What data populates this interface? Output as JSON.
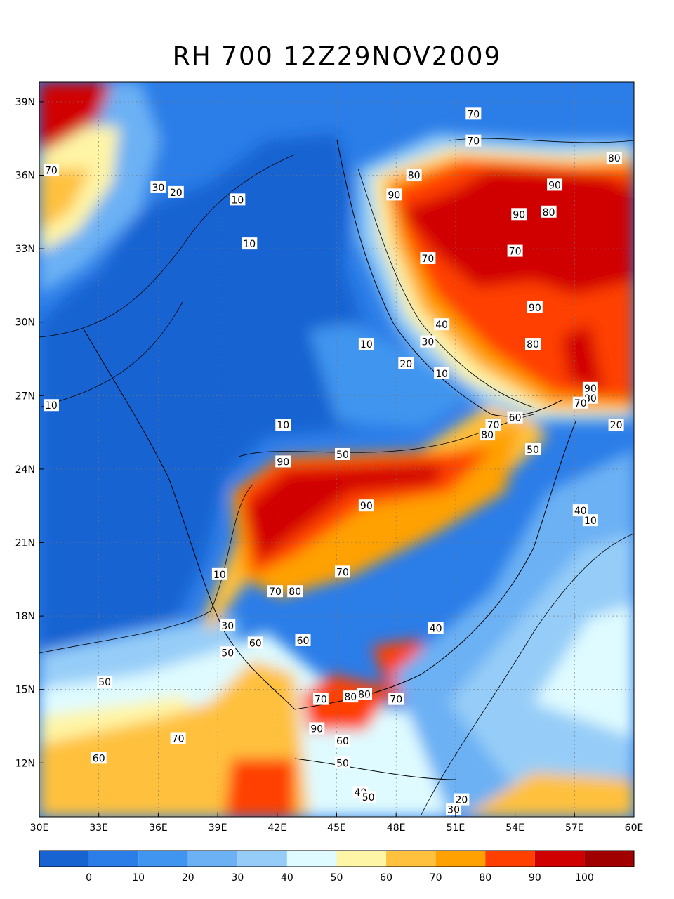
{
  "title": "RH 700 12Z29NOV2009",
  "map": {
    "lon_range": [
      30,
      60
    ],
    "lat_range": [
      9.8,
      39.8
    ],
    "x_ticks": [
      "30E",
      "33E",
      "36E",
      "39E",
      "42E",
      "45E",
      "48E",
      "51E",
      "54E",
      "57E",
      "60E"
    ],
    "x_tick_values": [
      30,
      33,
      36,
      39,
      42,
      45,
      48,
      51,
      54,
      57,
      60
    ],
    "y_ticks": [
      "12N",
      "15N",
      "18N",
      "21N",
      "24N",
      "27N",
      "30N",
      "33N",
      "36N",
      "39N"
    ],
    "y_tick_values": [
      12,
      15,
      18,
      21,
      24,
      27,
      30,
      33,
      36,
      39
    ],
    "grid": true
  },
  "colorbar": {
    "colors": [
      "#1763d1",
      "#2b7de8",
      "#3f95ef",
      "#6cb1f4",
      "#96cdf8",
      "#dffbff",
      "#fff5a6",
      "#ffc13e",
      "#ffa100",
      "#ff3f00",
      "#d10000",
      "#a10000"
    ],
    "labels": [
      "0",
      "10",
      "20",
      "30",
      "40",
      "50",
      "60",
      "70",
      "80",
      "90",
      "100"
    ]
  },
  "contour_labels": [
    {
      "text": "70",
      "lon": 30.6,
      "lat": 36.2
    },
    {
      "text": "30",
      "lon": 36.0,
      "lat": 35.5
    },
    {
      "text": "20",
      "lon": 36.9,
      "lat": 35.3
    },
    {
      "text": "10",
      "lon": 40.0,
      "lat": 35.0
    },
    {
      "text": "10",
      "lon": 40.6,
      "lat": 33.2
    },
    {
      "text": "70",
      "lon": 51.9,
      "lat": 38.5
    },
    {
      "text": "70",
      "lon": 51.9,
      "lat": 37.4
    },
    {
      "text": "80",
      "lon": 59.0,
      "lat": 36.7
    },
    {
      "text": "80",
      "lon": 48.9,
      "lat": 36.0
    },
    {
      "text": "90",
      "lon": 47.9,
      "lat": 35.2
    },
    {
      "text": "90",
      "lon": 56.0,
      "lat": 35.6
    },
    {
      "text": "90",
      "lon": 54.2,
      "lat": 34.4
    },
    {
      "text": "80",
      "lon": 55.7,
      "lat": 34.5
    },
    {
      "text": "70",
      "lon": 49.6,
      "lat": 32.6
    },
    {
      "text": "70",
      "lon": 54.0,
      "lat": 32.9
    },
    {
      "text": "90",
      "lon": 55.0,
      "lat": 30.6
    },
    {
      "text": "40",
      "lon": 50.3,
      "lat": 29.9
    },
    {
      "text": "30",
      "lon": 49.6,
      "lat": 29.2
    },
    {
      "text": "10",
      "lon": 46.5,
      "lat": 29.1
    },
    {
      "text": "20",
      "lon": 48.5,
      "lat": 28.3
    },
    {
      "text": "10",
      "lon": 50.3,
      "lat": 27.9
    },
    {
      "text": "80",
      "lon": 54.9,
      "lat": 29.1
    },
    {
      "text": "90",
      "lon": 57.8,
      "lat": 27.3
    },
    {
      "text": "80",
      "lon": 57.8,
      "lat": 26.9
    },
    {
      "text": "70",
      "lon": 57.3,
      "lat": 26.7
    },
    {
      "text": "10",
      "lon": 30.6,
      "lat": 26.6
    },
    {
      "text": "60",
      "lon": 54.0,
      "lat": 26.1
    },
    {
      "text": "70",
      "lon": 52.9,
      "lat": 25.8
    },
    {
      "text": "20",
      "lon": 59.1,
      "lat": 25.8
    },
    {
      "text": "10",
      "lon": 42.3,
      "lat": 25.8
    },
    {
      "text": "80",
      "lon": 52.6,
      "lat": 25.4
    },
    {
      "text": "90",
      "lon": 42.3,
      "lat": 24.3
    },
    {
      "text": "50",
      "lon": 45.3,
      "lat": 24.6
    },
    {
      "text": "50",
      "lon": 54.9,
      "lat": 24.8
    },
    {
      "text": "90",
      "lon": 46.5,
      "lat": 22.5
    },
    {
      "text": "40",
      "lon": 57.3,
      "lat": 22.3
    },
    {
      "text": "10",
      "lon": 57.8,
      "lat": 21.9
    },
    {
      "text": "10",
      "lon": 39.1,
      "lat": 19.7
    },
    {
      "text": "70",
      "lon": 45.3,
      "lat": 19.8
    },
    {
      "text": "70",
      "lon": 41.9,
      "lat": 19.0
    },
    {
      "text": "80",
      "lon": 42.9,
      "lat": 19.0
    },
    {
      "text": "30",
      "lon": 39.5,
      "lat": 17.6
    },
    {
      "text": "60",
      "lon": 40.9,
      "lat": 16.9
    },
    {
      "text": "60",
      "lon": 43.3,
      "lat": 17.0
    },
    {
      "text": "50",
      "lon": 39.5,
      "lat": 16.5
    },
    {
      "text": "40",
      "lon": 50.0,
      "lat": 17.5
    },
    {
      "text": "50",
      "lon": 33.3,
      "lat": 15.3
    },
    {
      "text": "70",
      "lon": 44.2,
      "lat": 14.6
    },
    {
      "text": "80",
      "lon": 45.7,
      "lat": 14.7
    },
    {
      "text": "80",
      "lon": 46.4,
      "lat": 14.8
    },
    {
      "text": "70",
      "lon": 48.0,
      "lat": 14.6
    },
    {
      "text": "90",
      "lon": 44.0,
      "lat": 13.4
    },
    {
      "text": "70",
      "lon": 37.0,
      "lat": 13.0
    },
    {
      "text": "60",
      "lon": 45.3,
      "lat": 12.9
    },
    {
      "text": "60",
      "lon": 33.0,
      "lat": 12.2
    },
    {
      "text": "50",
      "lon": 45.3,
      "lat": 12.0
    },
    {
      "text": "40",
      "lon": 46.2,
      "lat": 10.8
    },
    {
      "text": "50",
      "lon": 46.6,
      "lat": 10.6
    },
    {
      "text": "20",
      "lon": 51.3,
      "lat": 10.5
    },
    {
      "text": "30",
      "lon": 50.9,
      "lat": 10.1
    }
  ]
}
